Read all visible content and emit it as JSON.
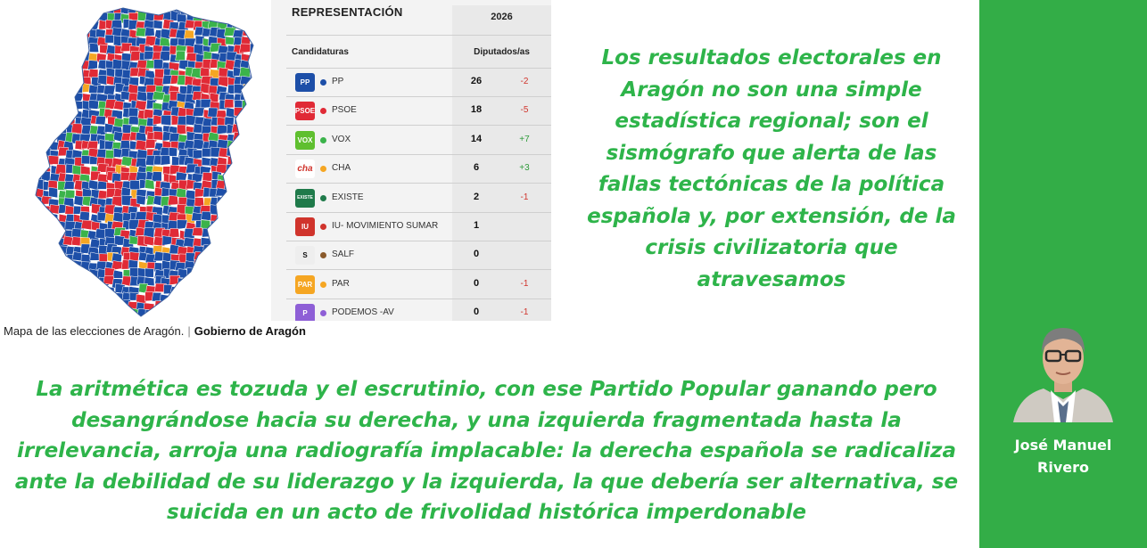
{
  "map": {
    "caption_text": "Mapa de las elecciones de Aragón.",
    "caption_separator": "|",
    "caption_source": "Gobierno de Aragón",
    "colors": [
      "#1d4fa8",
      "#e02a36",
      "#3bb34a",
      "#f5a623"
    ]
  },
  "results_table": {
    "title": "REPRESENTACIÓN",
    "year": "2026",
    "col_parties": "Candidaturas",
    "col_seats": "Diputados/as",
    "rows": [
      {
        "logo": "PP",
        "party": "PP",
        "seats": "26",
        "change": "-2",
        "trend": "neg",
        "color": "#1d4fa8",
        "logo_bg": "#1d4fa8"
      },
      {
        "logo": "PSOE",
        "party": "PSOE",
        "seats": "18",
        "change": "-5",
        "trend": "neg",
        "color": "#e02a36",
        "logo_bg": "#e02a36"
      },
      {
        "logo": "VOX",
        "party": "VOX",
        "seats": "14",
        "change": "+7",
        "trend": "pos",
        "color": "#3bb34a",
        "logo_bg": "#5fbf2f"
      },
      {
        "logo": "cha",
        "party": "CHA",
        "seats": "6",
        "change": "+3",
        "trend": "pos",
        "color": "#f5a623",
        "logo_bg": "#ffffff"
      },
      {
        "logo": "EXISTE",
        "party": "EXISTE",
        "seats": "2",
        "change": "-1",
        "trend": "neg",
        "color": "#1f7a4a",
        "logo_bg": "#1f7a4a"
      },
      {
        "logo": "IU",
        "party": "IU- MOVIMIENTO SUMAR",
        "seats": "1",
        "change": "",
        "trend": "",
        "color": "#d0342c",
        "logo_bg": "#d0342c"
      },
      {
        "logo": "S",
        "party": "SALF",
        "seats": "0",
        "change": "",
        "trend": "",
        "color": "#8a5a2b",
        "logo_bg": "#eeeeee"
      },
      {
        "logo": "PAR",
        "party": "PAR",
        "seats": "0",
        "change": "-1",
        "trend": "neg",
        "color": "#f5a623",
        "logo_bg": "#f5a623"
      },
      {
        "logo": "P",
        "party": "PODEMOS -AV",
        "seats": "0",
        "change": "-1",
        "trend": "neg",
        "color": "#8e5fd6",
        "logo_bg": "#8e5fd6"
      }
    ]
  },
  "quote_top": "Los resultados electorales en Aragón no son una simple estadística regional; son el sismógrafo que alerta de las fallas tectónicas de la política española y, por extensión, de la crisis civilizatoria que atravesamos",
  "quote_bottom": "La aritmética es tozuda y el escrutinio, con ese Partido Popular ganando pero desangrándose hacia su derecha, y una izquierda fragmentada hasta la irrelevancia, arroja una radiografía implacable: la derecha española se radicaliza ante la debilidad de su liderazgo y la izquierda, la que debería ser alternativa, se suicida en un acto de frivolidad histórica imperdonable",
  "author": {
    "first_name": "José Manuel",
    "last_name": "Rivero",
    "panel_color": "#33ad47"
  }
}
